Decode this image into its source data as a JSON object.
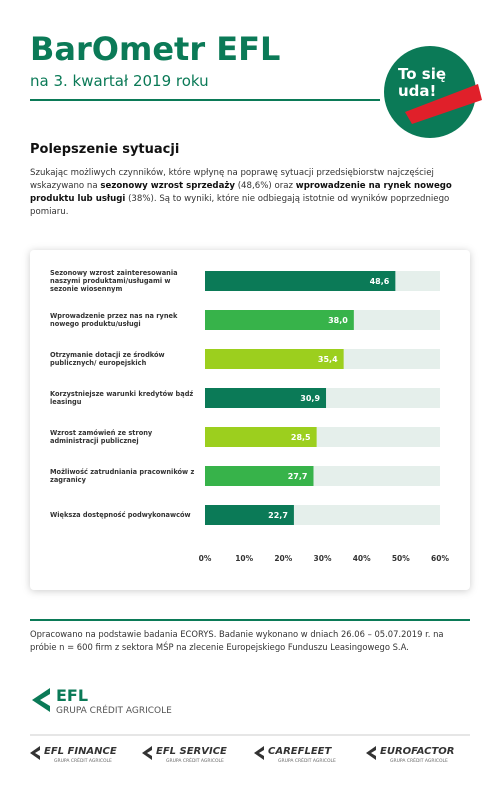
{
  "header": {
    "title": "BarOmetr EFL",
    "subtitle": "na 3. kwartał 2019 roku",
    "badge": "To się uda!"
  },
  "section_title": "Polepszenie sytuacji",
  "paragraph": [
    {
      "text": "Szukając możliwych czynników, które wpłynę na poprawę sytuacji przedsiębiorstw najczęściej wskazywano na ",
      "bold": false
    },
    {
      "text": "sezonowy wzrost sprzedaży",
      "bold": true
    },
    {
      "text": " (48,6%) oraz ",
      "bold": false
    },
    {
      "text": "wprowadzenie na rynek nowego produktu lub usługi",
      "bold": true
    },
    {
      "text": " (38%). Są to wyniki, które nie odbiegają istotnie od wyników poprzedniego pomiaru.",
      "bold": false
    }
  ],
  "chart_data": {
    "type": "hbar",
    "categories": [
      "Sezonowy wzrost zainteresowania naszymi produktami/usługami w sezonie wiosennym",
      "Wprowadzenie przez nas na rynek nowego produktu/usługi",
      "Otrzymanie dotacji ze środków publicznych/ europejskich",
      "Korzystniejsze warunki kredytów bądź leasingu",
      "Wzrost zamówień ze strony administracji publicznej",
      "Możliwość zatrudniania pracowników z zagranicy",
      "Większa dostępność podwykonawców"
    ],
    "values": [
      48.6,
      38.0,
      35.4,
      30.9,
      28.5,
      27.7,
      22.7
    ],
    "value_labels": [
      "48,6",
      "38,0",
      "35,4",
      "30,9",
      "28,5",
      "27,7",
      "22,7"
    ],
    "colors": [
      "#0b7a57",
      "#37b34a",
      "#9ccf1e",
      "#0b7a57",
      "#9ccf1e",
      "#37b34a",
      "#0b7a57"
    ],
    "track_color": "#e5efeb",
    "xlim": [
      0,
      60
    ],
    "xticks": [
      {
        "value": 0,
        "label": "0%"
      },
      {
        "value": 10,
        "label": "10%"
      },
      {
        "value": 20,
        "label": "20%"
      },
      {
        "value": 30,
        "label": "30%"
      },
      {
        "value": 40,
        "label": "40%"
      },
      {
        "value": 50,
        "label": "50%"
      },
      {
        "value": 60,
        "label": "60%"
      }
    ]
  },
  "footnote": "Opracowano na podstawie badania ECORYS. Badanie wykonano w dniach 26.06 – 05.07.2019 r. na próbie n = 600 firm z sektora MŚP na zlecenie Europejskiego Funduszu Leasingowego S.A.",
  "main_logo": {
    "name": "EFL",
    "sub": "GRUPA CRÉDIT AGRICOLE"
  },
  "logos": [
    {
      "name": "EFL FINANCE",
      "sub": "GRUPA CRÉDIT AGRICOLE"
    },
    {
      "name": "EFL SERVICE",
      "sub": "GRUPA CRÉDIT AGRICOLE"
    },
    {
      "name": "CAREFLEET",
      "sub": "GRUPA CRÉDIT AGRICOLE"
    },
    {
      "name": "EUROFACTOR",
      "sub": "GRUPA CRÉDIT AGRICOLE"
    }
  ]
}
